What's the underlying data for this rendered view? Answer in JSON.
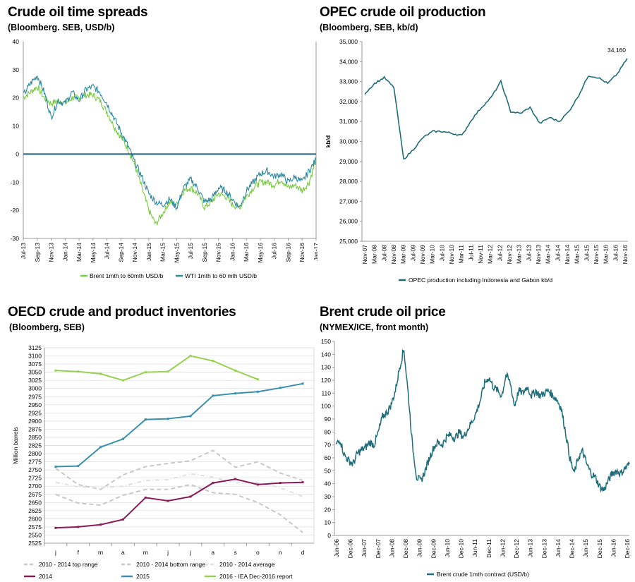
{
  "panels": [
    {
      "title": "Crude oil time spreads",
      "subtitle": "(Bloomberg. SEB, USD/b)"
    },
    {
      "title": "OPEC crude oil production",
      "subtitle": "(Bloomberg, SEB, kb/d)"
    },
    {
      "title": "OECD crude and product inventories",
      "subtitle": "(Bloomberg, SEB)"
    },
    {
      "title": "Brent crude oil price",
      "subtitle": "(NYMEX/ICE, front month)"
    }
  ],
  "chart_data": [
    {
      "type": "line",
      "title": "Crude oil time spreads",
      "subtitle": "(Bloomberg. SEB, USD/b)",
      "ylim": [
        -30,
        40
      ],
      "yticks": [
        "40",
        "30",
        "20",
        "10",
        "0",
        "-10",
        "-20",
        "-30"
      ],
      "xticks": [
        "Jul-13",
        "Sep-13",
        "Nov-13",
        "Jan-14",
        "Mar-14",
        "May-14",
        "Jul-14",
        "Sep-14",
        "Nov-14",
        "Jan-15",
        "Mar-15",
        "May-15",
        "Jul-15",
        "Sep-15",
        "Nov-15",
        "Jan-16",
        "Mar-16",
        "May-16",
        "Jul-16",
        "Sep-16",
        "Nov-16",
        "Jan-17"
      ],
      "legend": "bottom",
      "colors": {
        "brent": "#7ac943",
        "wti": "#2a8aa0",
        "zero": "#1f5f73"
      },
      "x": [
        "Jul-13",
        "Aug-13",
        "Sep-13",
        "Oct-13",
        "Nov-13",
        "Dec-13",
        "Jan-14",
        "Feb-14",
        "Mar-14",
        "Apr-14",
        "May-14",
        "Jun-14",
        "Jul-14",
        "Aug-14",
        "Sep-14",
        "Oct-14",
        "Nov-14",
        "Dec-14",
        "Jan-15",
        "Feb-15",
        "Mar-15",
        "Apr-15",
        "May-15",
        "Jun-15",
        "Jul-15",
        "Aug-15",
        "Sep-15",
        "Oct-15",
        "Nov-15",
        "Dec-15",
        "Jan-16",
        "Feb-16",
        "Mar-16",
        "Apr-16",
        "May-16",
        "Jun-16",
        "Jul-16",
        "Aug-16",
        "Sep-16",
        "Oct-16",
        "Nov-16",
        "Dec-16",
        "Jan-17"
      ],
      "series": [
        {
          "name": "Brent 1mth to 60mth USD/b",
          "values": [
            20,
            22,
            24,
            20,
            18,
            19,
            18,
            20,
            20,
            21,
            21,
            19,
            15,
            10,
            6,
            2,
            -4,
            -12,
            -20,
            -25,
            -21,
            -17,
            -18,
            -13,
            -12,
            -14,
            -19,
            -17,
            -14,
            -15,
            -18,
            -19,
            -15,
            -12,
            -10,
            -10,
            -11,
            -9,
            -12,
            -11,
            -13,
            -10,
            -2
          ]
        },
        {
          "name": "WTI 1mth to 60 mth USD/b",
          "values": [
            21,
            25,
            28,
            22,
            13,
            19,
            18,
            22,
            19,
            23,
            24,
            22,
            18,
            13,
            8,
            3,
            -3,
            -8,
            -14,
            -17,
            -18,
            -16,
            -19,
            -12,
            -9,
            -12,
            -17,
            -16,
            -12,
            -13,
            -16,
            -19,
            -13,
            -10,
            -7,
            -6,
            -8,
            -7,
            -10,
            -8,
            -10,
            -6,
            -2
          ]
        }
      ]
    },
    {
      "type": "line",
      "title": "OPEC crude oil production",
      "subtitle": "(Bloomberg, SEB, kb/d)",
      "ylabel": "kb/d",
      "ylim": [
        25000,
        35000
      ],
      "yticks": [
        "35,000",
        "34,000",
        "33,000",
        "32,000",
        "31,000",
        "30,000",
        "29,000",
        "28,000",
        "27,000",
        "26,000",
        "25,000"
      ],
      "xticks": [
        "Nov-07",
        "Mar-08",
        "Jul-08",
        "Nov-08",
        "Mar-09",
        "Jul-09",
        "Nov-09",
        "Mar-10",
        "Jul-10",
        "Nov-10",
        "Mar-11",
        "Jul-11",
        "Nov-11",
        "Mar-12",
        "Jul-12",
        "Nov-12",
        "Mar-13",
        "Jul-13",
        "Nov-13",
        "Mar-14",
        "Jul-14",
        "Nov-14",
        "Mar-15",
        "Jul-15",
        "Nov-15",
        "Mar-16",
        "Jul-16",
        "Nov-16"
      ],
      "annotation": "34,160",
      "legend": "bottom",
      "colors": {
        "line": "#1f6d7a"
      },
      "series": [
        {
          "name": "OPEC production including Indonesia and Gabon kb/d",
          "values": [
            32400,
            32900,
            33200,
            32700,
            29100,
            29600,
            30200,
            30500,
            30500,
            30400,
            30300,
            31100,
            31700,
            32200,
            33000,
            31500,
            31400,
            31700,
            30900,
            31200,
            31000,
            31500,
            32300,
            33300,
            33200,
            32900,
            33400,
            34160
          ]
        }
      ]
    },
    {
      "type": "line",
      "title": "OECD crude and product inventories",
      "subtitle": "(Bloomberg, SEB)",
      "ylabel": "Million barrels",
      "ylim": [
        2525,
        3125
      ],
      "yticks": [
        "3125",
        "3100",
        "3075",
        "3050",
        "3025",
        "3000",
        "2975",
        "2950",
        "2925",
        "2900",
        "2875",
        "2850",
        "2825",
        "2800",
        "2775",
        "2750",
        "2725",
        "2700",
        "2675",
        "2650",
        "2625",
        "2600",
        "2575",
        "2550",
        "2525"
      ],
      "categories": [
        "j",
        "f",
        "m",
        "a",
        "m",
        "j",
        "j",
        "a",
        "s",
        "o",
        "n",
        "d"
      ],
      "legend": "bottom",
      "colors": {
        "top": "#c8c8c8",
        "bottom": "#c8c8c8",
        "avg": "#e0e0e0",
        "y2014": "#8b1a5a",
        "y2015": "#3a8fab",
        "y2016": "#98d152"
      },
      "series": [
        {
          "name": "2010 - 2014 top range",
          "values": [
            2755,
            2705,
            2690,
            2735,
            2760,
            2770,
            2778,
            2810,
            2758,
            2775,
            2740,
            2718
          ]
        },
        {
          "name": "2010 - 2014 bottom range",
          "values": [
            2675,
            2648,
            2642,
            2672,
            2690,
            2690,
            2705,
            2680,
            2675,
            2650,
            2612,
            2558
          ]
        },
        {
          "name": "2010 - 2014 average",
          "values": [
            2712,
            2698,
            2695,
            2700,
            2718,
            2720,
            2738,
            2728,
            2710,
            2712,
            2695,
            2668
          ]
        },
        {
          "name": "2014",
          "values": [
            2572,
            2575,
            2582,
            2598,
            2665,
            2655,
            2668,
            2710,
            2722,
            2705,
            2710,
            2712
          ]
        },
        {
          "name": "2015",
          "values": [
            2760,
            2762,
            2820,
            2845,
            2905,
            2907,
            2915,
            2978,
            2985,
            2990,
            3002,
            3015
          ]
        },
        {
          "name": "2016 - IEA Dec-2016 report",
          "values": [
            3055,
            3052,
            3045,
            3025,
            3050,
            3052,
            3100,
            3085,
            3055,
            3028,
            null,
            null
          ]
        }
      ]
    },
    {
      "type": "line",
      "title": "Brent crude oil price",
      "subtitle": "(NYMEX/ICE, front month)",
      "ylim": [
        0,
        150
      ],
      "yticks": [
        "150",
        "140",
        "130",
        "120",
        "110",
        "100",
        "90",
        "80",
        "70",
        "60",
        "50",
        "40",
        "30",
        "20",
        "10",
        "0"
      ],
      "xticks": [
        "Jun-06",
        "Dec-06",
        "Jun-07",
        "Dec-07",
        "Jun-08",
        "Dec-08",
        "Jun-09",
        "Dec-09",
        "Jun-10",
        "Dec-10",
        "Jun-11",
        "Dec-11",
        "Jun-12",
        "Dec-12",
        "Jun-13",
        "Dec-13",
        "Jun-14",
        "Dec-14",
        "Jun-15",
        "Dec-15",
        "Jun-16",
        "Dec-16"
      ],
      "legend": "bottom",
      "colors": {
        "line": "#1f6d7a"
      },
      "series": [
        {
          "name": "Brent crude 1mth contract (USD/b)",
          "values": [
            70,
            74,
            62,
            58,
            55,
            63,
            66,
            68,
            72,
            70,
            80,
            92,
            95,
            101,
            112,
            130,
            144,
            110,
            70,
            45,
            42,
            50,
            60,
            68,
            72,
            70,
            76,
            78,
            75,
            80,
            76,
            82,
            88,
            95,
            105,
            118,
            122,
            115,
            112,
            108,
            124,
            118,
            100,
            112,
            110,
            115,
            108,
            112,
            108,
            110,
            112,
            108,
            105,
            98,
            80,
            60,
            48,
            60,
            65,
            55,
            48,
            45,
            38,
            35,
            42,
            48,
            50,
            48,
            52,
            55
          ]
        }
      ]
    }
  ]
}
